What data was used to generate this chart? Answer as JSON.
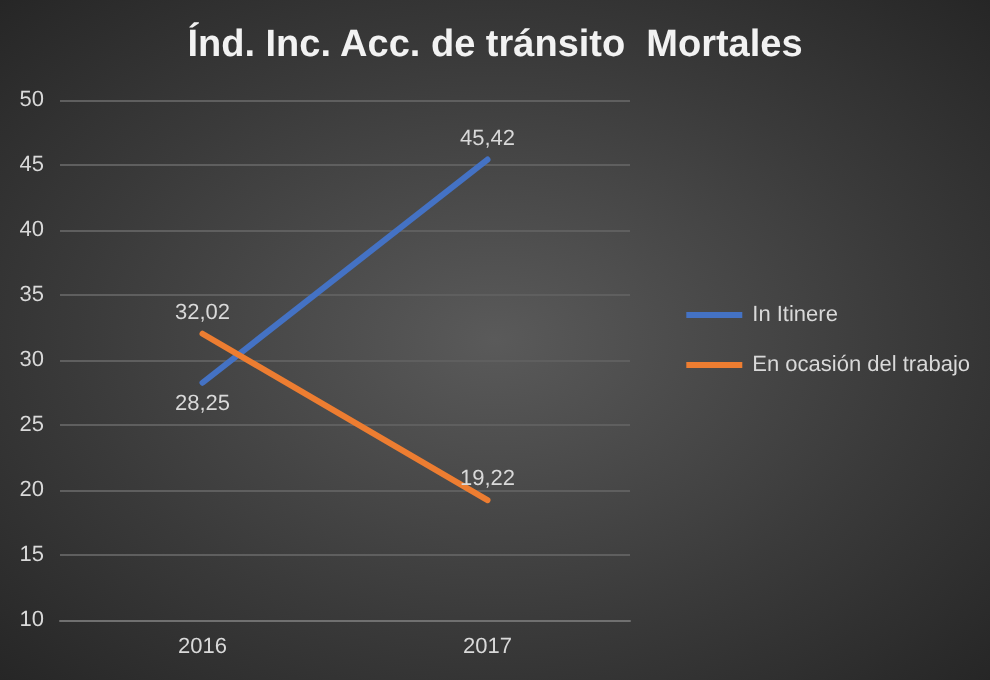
{
  "chart_data": {
    "type": "line",
    "title": "Índ. Inc. Acc. de tránsito  Mortales",
    "categories": [
      "2016",
      "2017"
    ],
    "series": [
      {
        "name": "In Itinere",
        "color": "#4472c4",
        "values": [
          28.25,
          45.42
        ],
        "value_labels": [
          "28,25",
          "45,42"
        ]
      },
      {
        "name": "En ocasión del trabajo",
        "color": "#ed7d31",
        "values": [
          32.02,
          19.22
        ],
        "value_labels": [
          "32,02",
          "19,22"
        ]
      }
    ],
    "ylim": [
      10,
      50
    ],
    "yticks": [
      10,
      15,
      20,
      25,
      30,
      35,
      40,
      45,
      50
    ],
    "grid": "y",
    "legend": "right",
    "marker": "none",
    "line_style": "solid"
  }
}
